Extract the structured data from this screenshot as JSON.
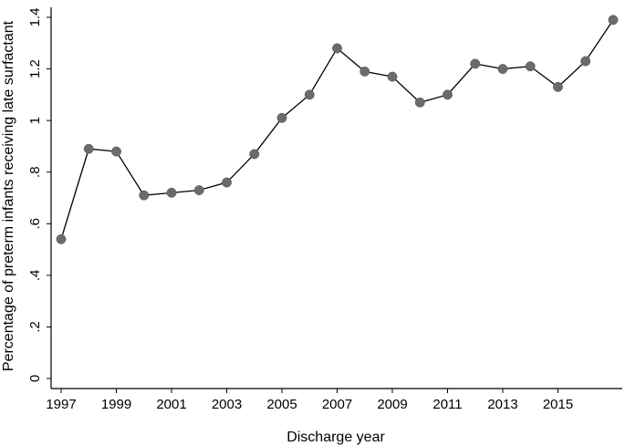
{
  "chart_data": {
    "type": "line",
    "title": "",
    "xlabel": "Discharge year",
    "ylabel": "Percentage of preterm infants receiving late surfactant",
    "x": [
      1997,
      1998,
      1999,
      2000,
      2001,
      2002,
      2003,
      2004,
      2005,
      2006,
      2007,
      2008,
      2009,
      2010,
      2011,
      2012,
      2013,
      2014,
      2015,
      2016,
      2017
    ],
    "series": [
      {
        "values": [
          0.54,
          0.89,
          0.88,
          0.71,
          0.72,
          0.73,
          0.76,
          0.87,
          1.01,
          1.1,
          1.28,
          1.19,
          1.17,
          1.07,
          1.1,
          1.22,
          1.2,
          1.21,
          1.13,
          1.23,
          1.39
        ],
        "color": "#6b6b6b"
      }
    ],
    "xlim": [
      1997,
      2017
    ],
    "ylim": [
      0,
      1.4
    ],
    "xticks": [
      1997,
      1999,
      2001,
      2003,
      2005,
      2007,
      2009,
      2011,
      2013,
      2015
    ],
    "xtick_labels": [
      "1997",
      "1999",
      "2001",
      "2003",
      "2005",
      "2007",
      "2009",
      "2011",
      "2013",
      "2015"
    ],
    "yticks": [
      0,
      0.2,
      0.4,
      0.6,
      0.8,
      1,
      1.2,
      1.4
    ],
    "ytick_labels": [
      "0",
      ".2",
      ".4",
      ".6",
      ".8",
      "1",
      "1.2",
      "1.4"
    ],
    "grid": false,
    "legend": "none"
  }
}
